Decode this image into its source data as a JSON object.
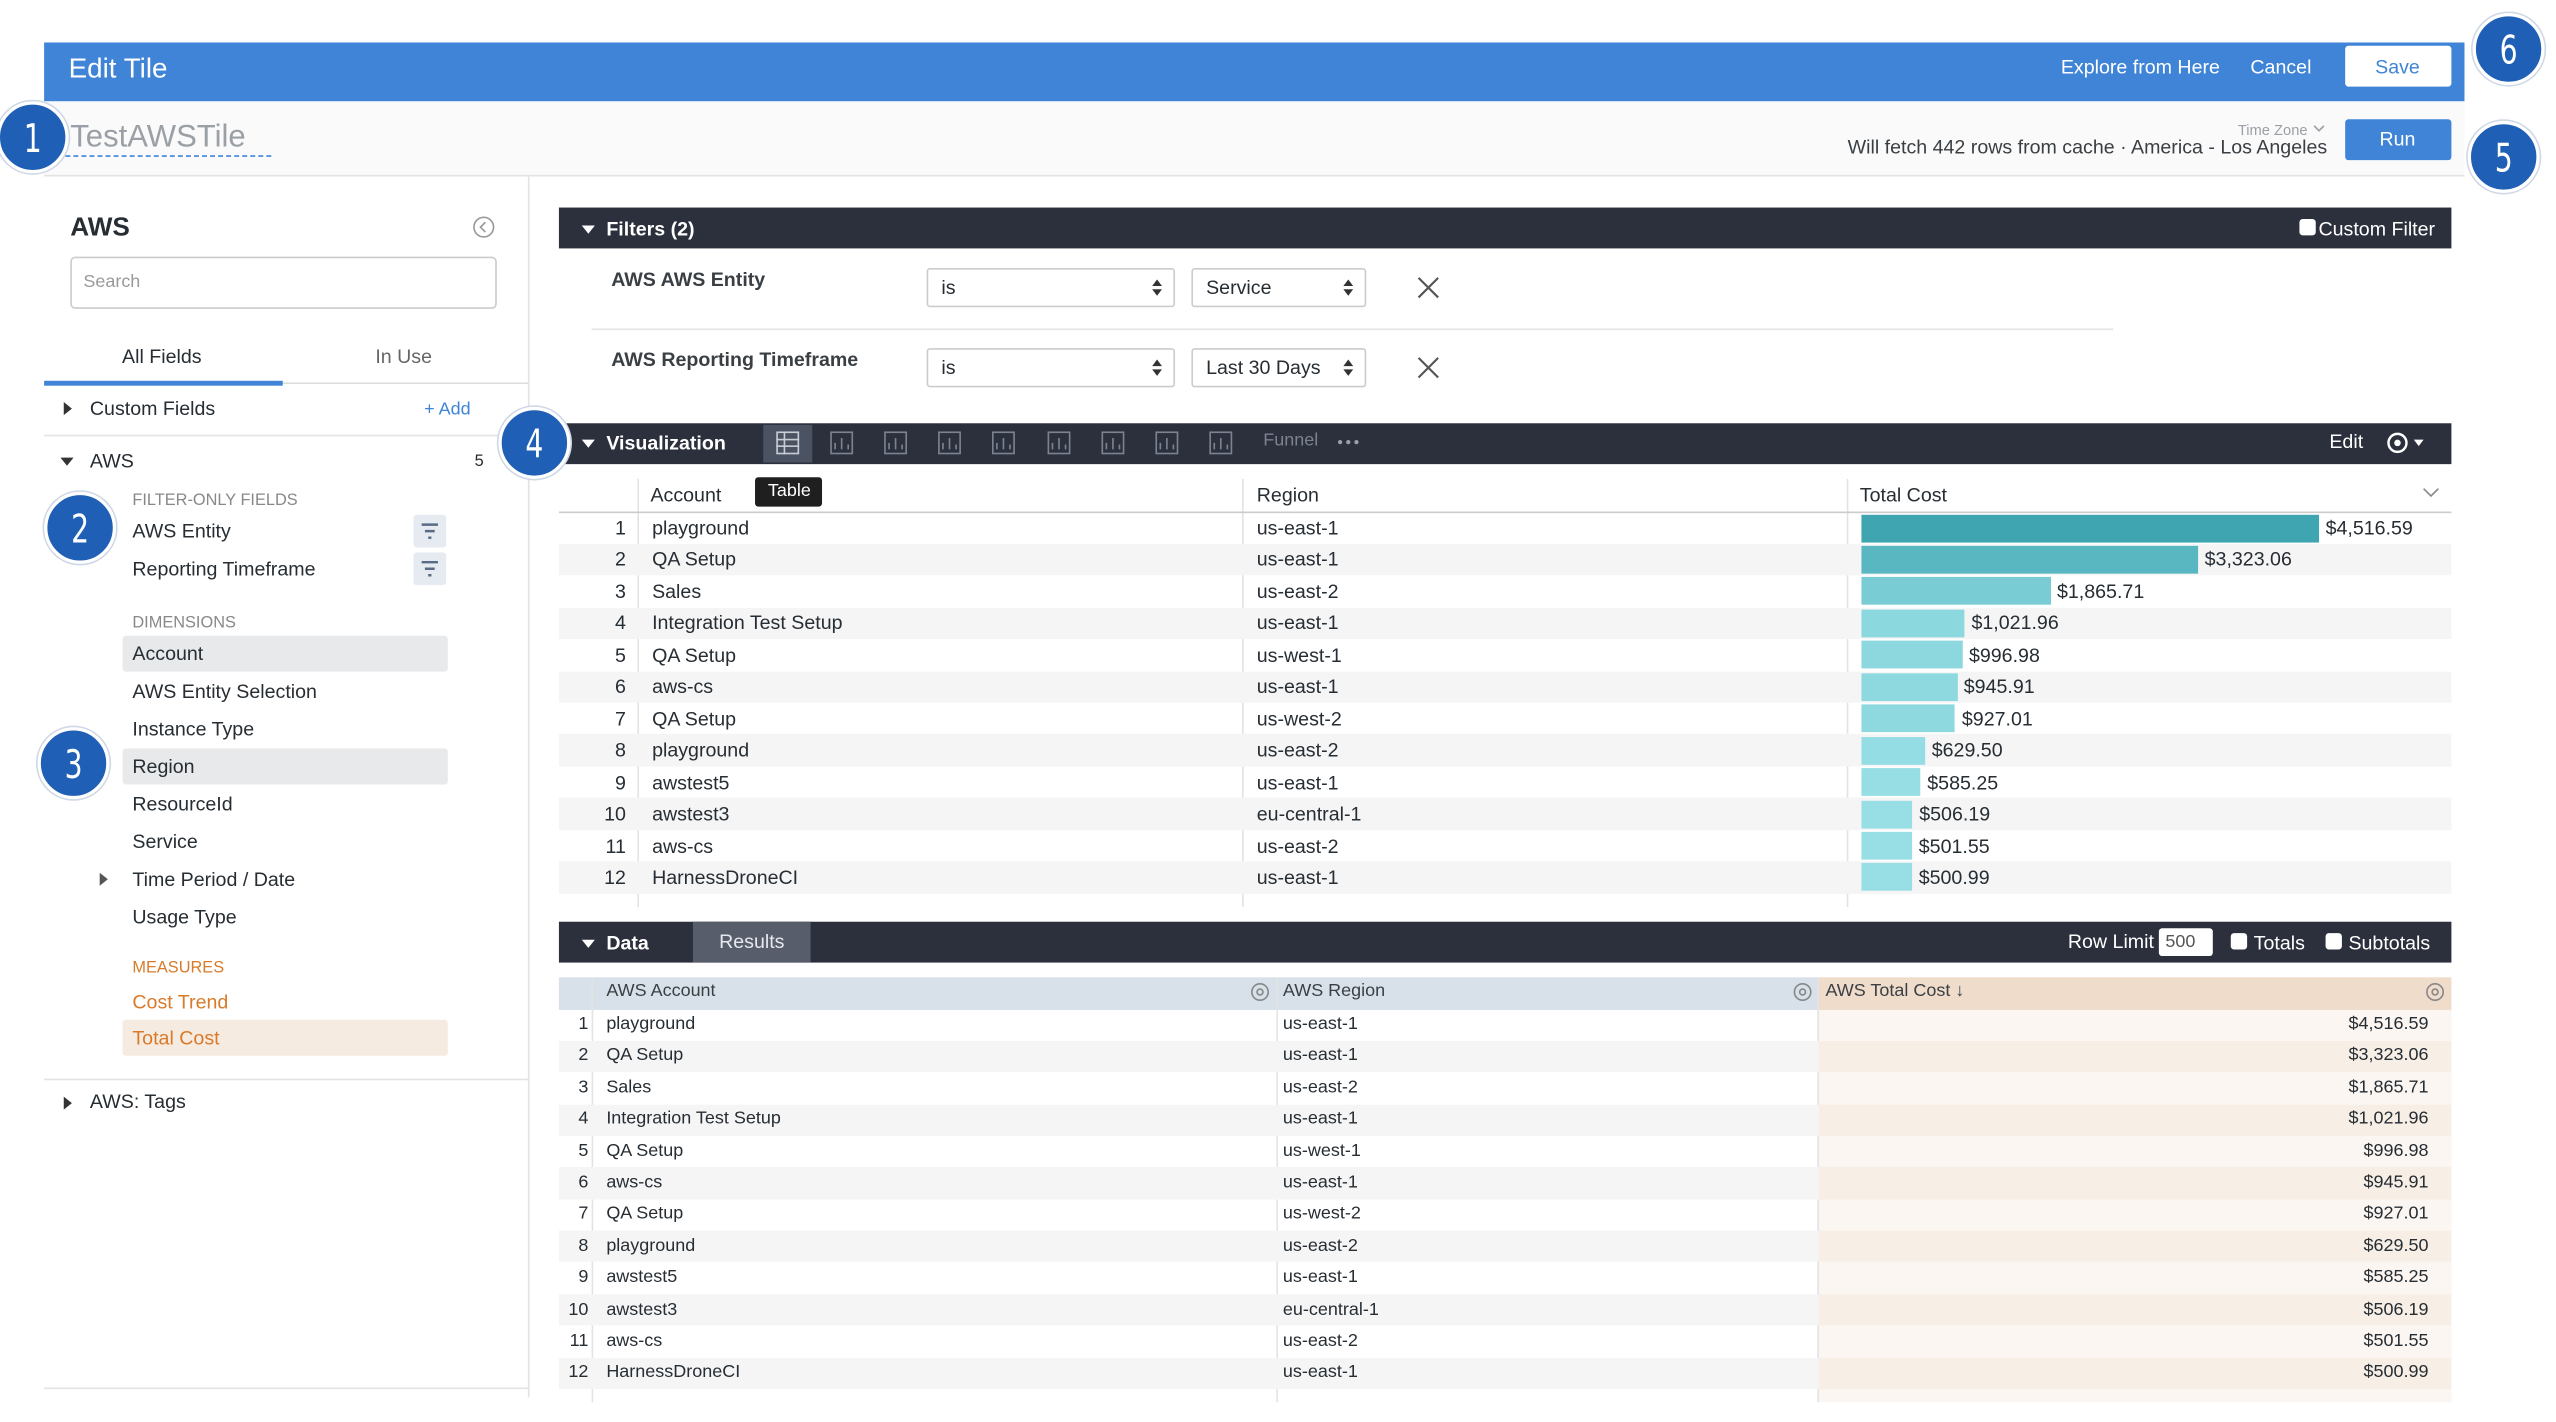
{
  "header": {
    "title": "Edit Tile",
    "explore": "Explore from Here",
    "cancel": "Cancel",
    "save": "Save"
  },
  "tile": {
    "name": "TestAWSTile",
    "time_zone": "Time Zone",
    "fetch_info": "Will fetch 442 rows from cache · America - Los Angeles",
    "run": "Run"
  },
  "callouts": [
    "1",
    "2",
    "3",
    "4",
    "5",
    "6"
  ],
  "field_picker": {
    "title": "AWS",
    "search": "Search",
    "tabs": [
      "All Fields",
      "In Use"
    ],
    "custom_fields": "Custom Fields",
    "add": "+ Add",
    "view": "AWS",
    "view_count": "5",
    "filter_only_heading": "FILTER-ONLY FIELDS",
    "filter_only": [
      "AWS Entity",
      "Reporting Timeframe"
    ],
    "dimensions_heading": "DIMENSIONS",
    "dimensions": [
      "Account",
      "AWS Entity Selection",
      "Instance Type",
      "Region",
      "ResourceId",
      "Service",
      "Time Period / Date",
      "Usage Type"
    ],
    "measures_heading": "MEASURES",
    "measures": [
      "Cost Trend",
      "Total Cost"
    ],
    "tags": "AWS: Tags"
  },
  "filters": {
    "title": "Filters (2)",
    "custom_filter": "Custom Filter",
    "rows": [
      {
        "field": "AWS AWS Entity",
        "operator": "is",
        "value": "Service"
      },
      {
        "field": "AWS Reporting Timeframe",
        "operator": "is",
        "value": "Last 30 Days"
      }
    ]
  },
  "visualization": {
    "title": "Visualization",
    "tooltip": "Table",
    "funnel": "Funnel",
    "edit": "Edit",
    "columns": [
      "Account",
      "Region",
      "Total Cost"
    ],
    "bar_colors": [
      "#a3e6ec",
      "#3fa6b1"
    ],
    "rows": [
      {
        "n": "1",
        "account": "playground",
        "region": "us-east-1",
        "cost": {
          "value": 4516.59,
          "label": "$4,516.59"
        }
      },
      {
        "n": "2",
        "account": "QA Setup",
        "region": "us-east-1",
        "cost": {
          "value": 3323.06,
          "label": "$3,323.06"
        }
      },
      {
        "n": "3",
        "account": "Sales",
        "region": "us-east-2",
        "cost": {
          "value": 1865.71,
          "label": "$1,865.71"
        }
      },
      {
        "n": "4",
        "account": "Integration Test Setup",
        "region": "us-east-1",
        "cost": {
          "value": 1021.96,
          "label": "$1,021.96"
        }
      },
      {
        "n": "5",
        "account": "QA Setup",
        "region": "us-west-1",
        "cost": {
          "value": 996.98,
          "label": "$996.98"
        }
      },
      {
        "n": "6",
        "account": "aws-cs",
        "region": "us-east-1",
        "cost": {
          "value": 945.91,
          "label": "$945.91"
        }
      },
      {
        "n": "7",
        "account": "QA Setup",
        "region": "us-west-2",
        "cost": {
          "value": 927.01,
          "label": "$927.01"
        }
      },
      {
        "n": "8",
        "account": "playground",
        "region": "us-east-2",
        "cost": {
          "value": 629.5,
          "label": "$629.50"
        }
      },
      {
        "n": "9",
        "account": "awstest5",
        "region": "us-east-1",
        "cost": {
          "value": 585.25,
          "label": "$585.25"
        }
      },
      {
        "n": "10",
        "account": "awstest3",
        "region": "eu-central-1",
        "cost": {
          "value": 506.19,
          "label": "$506.19"
        }
      },
      {
        "n": "11",
        "account": "aws-cs",
        "region": "us-east-2",
        "cost": {
          "value": 501.55,
          "label": "$501.55"
        }
      },
      {
        "n": "12",
        "account": "HarnessDroneCI",
        "region": "us-east-1",
        "cost": {
          "value": 500.99,
          "label": "$500.99"
        }
      }
    ]
  },
  "data": {
    "title": "Data",
    "tab": "Results",
    "row_limit_label": "Row Limit",
    "row_limit": "500",
    "totals": "Totals",
    "subtotals": "Subtotals",
    "columns": [
      "AWS Account",
      "AWS Region",
      "AWS Total Cost ↓"
    ],
    "rows": [
      [
        "1",
        "playground",
        "us-east-1",
        "$4,516.59"
      ],
      [
        "2",
        "QA Setup",
        "us-east-1",
        "$3,323.06"
      ],
      [
        "3",
        "Sales",
        "us-east-2",
        "$1,865.71"
      ],
      [
        "4",
        "Integration Test Setup",
        "us-east-1",
        "$1,021.96"
      ],
      [
        "5",
        "QA Setup",
        "us-west-1",
        "$996.98"
      ],
      [
        "6",
        "aws-cs",
        "us-east-1",
        "$945.91"
      ],
      [
        "7",
        "QA Setup",
        "us-west-2",
        "$927.01"
      ],
      [
        "8",
        "playground",
        "us-east-2",
        "$629.50"
      ],
      [
        "9",
        "awstest5",
        "us-east-1",
        "$585.25"
      ],
      [
        "10",
        "awstest3",
        "eu-central-1",
        "$506.19"
      ],
      [
        "11",
        "aws-cs",
        "us-east-2",
        "$501.55"
      ],
      [
        "12",
        "HarnessDroneCI",
        "us-east-1",
        "$500.99"
      ]
    ]
  }
}
